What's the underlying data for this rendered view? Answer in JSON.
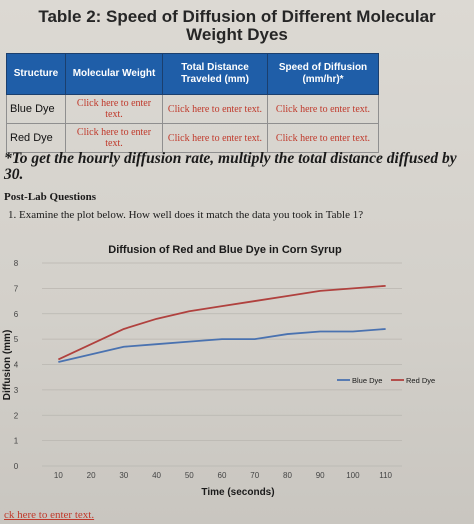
{
  "table": {
    "title_line1": "Table 2: Speed of Diffusion of Different Molecular",
    "title_line2": "Weight Dyes",
    "headers": [
      "Structure",
      "Molecular Weight",
      "Total Distance Traveled (mm)",
      "Speed of Diffusion (mm/hr)*"
    ],
    "rows": [
      {
        "structure": "Blue Dye",
        "cells": [
          "Click here to enter text.",
          "Click here to enter text.",
          "Click here to enter text."
        ]
      },
      {
        "structure": "Red Dye",
        "cells": [
          "Click here to enter text.",
          "Click here to enter text.",
          "Click here to enter text."
        ]
      }
    ]
  },
  "note": "*To get the hourly diffusion rate, multiply the total distance diffused by 30.",
  "postlab_heading": "Post-Lab Questions",
  "question1": "1. Examine the plot below. How well does it match the data you took in Table 1?",
  "chart_data": {
    "type": "line",
    "title": "Diffusion of Red and Blue Dye in Corn Syrup",
    "xlabel": "Time (seconds)",
    "ylabel": "Diffusion (mm)",
    "x": [
      10,
      20,
      30,
      40,
      50,
      60,
      70,
      80,
      90,
      100,
      110
    ],
    "x_ticks": [
      "10",
      "20",
      "30",
      "40",
      "50",
      "60",
      "70",
      "80",
      "90",
      "100",
      "110"
    ],
    "y_ticks": [
      "0",
      "1",
      "2",
      "3",
      "4",
      "5",
      "6",
      "7",
      "8"
    ],
    "ylim": [
      0,
      8
    ],
    "grid": true,
    "legend_position": "right",
    "series": [
      {
        "name": "Blue Dye",
        "color": "#4a72b0",
        "values": [
          4.1,
          4.4,
          4.7,
          4.8,
          4.9,
          5.0,
          5.0,
          5.2,
          5.3,
          5.3,
          5.4
        ]
      },
      {
        "name": "Red Dye",
        "color": "#b0413e",
        "values": [
          4.2,
          4.8,
          5.4,
          5.8,
          6.1,
          6.3,
          6.5,
          6.7,
          6.9,
          7.0,
          7.1
        ]
      }
    ]
  },
  "bottom_link": "ck here to enter text."
}
